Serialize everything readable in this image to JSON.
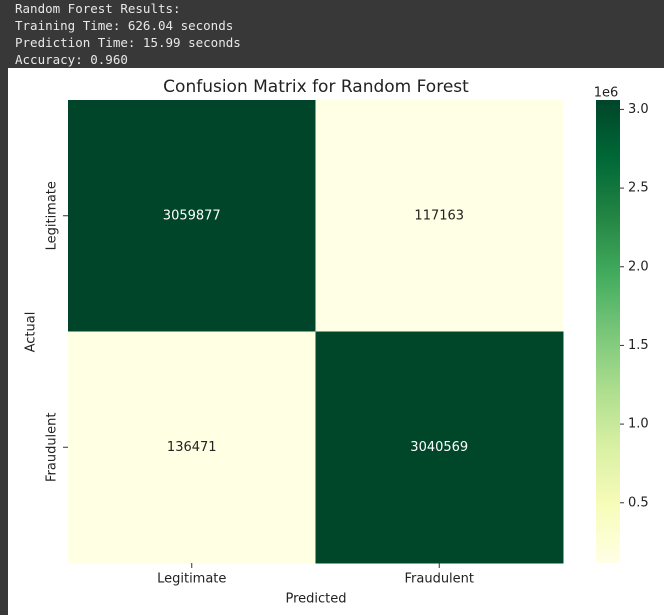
{
  "console": {
    "lines": [
      "Random Forest Results:",
      "Training Time: 626.04 seconds",
      "Prediction Time: 15.99 seconds",
      "Accuracy: 0.960"
    ]
  },
  "chart_data": {
    "type": "heatmap",
    "title": "Confusion Matrix for Random Forest",
    "x_label": "Predicted",
    "y_label": "Actual",
    "x_categories": [
      "Legitimate",
      "Fraudulent"
    ],
    "y_categories": [
      "Legitimate",
      "Fraudulent"
    ],
    "values": [
      [
        3059877,
        117163
      ],
      [
        136471,
        3040569
      ]
    ],
    "colormap": "YlGn",
    "clim": [
      117163,
      3059877
    ],
    "colorbar_ticks": [
      {
        "value": 500000,
        "label": "0.5"
      },
      {
        "value": 1000000,
        "label": "1.0"
      },
      {
        "value": 1500000,
        "label": "1.5"
      },
      {
        "value": 2000000,
        "label": "2.0"
      },
      {
        "value": 2500000,
        "label": "2.5"
      },
      {
        "value": 3000000,
        "label": "3.0"
      }
    ],
    "colorbar_offset_label": "1e6"
  }
}
